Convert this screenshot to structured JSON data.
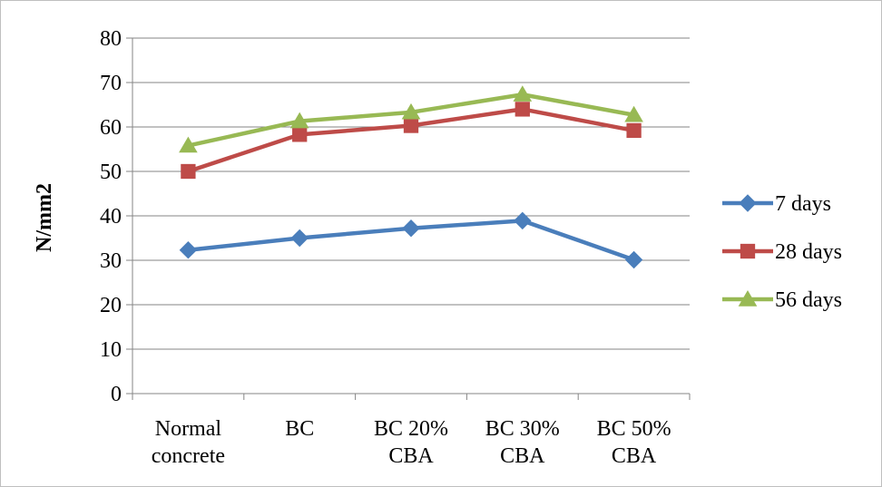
{
  "chart_data": {
    "type": "line",
    "title": "",
    "xlabel": "",
    "ylabel": "N/mm2",
    "ylim": [
      0,
      80
    ],
    "ytick_step": 10,
    "yticks": [
      "0",
      "10",
      "20",
      "30",
      "40",
      "50",
      "60",
      "70",
      "80"
    ],
    "grid": true,
    "legend_position": "right",
    "categories": [
      [
        "Normal",
        "concrete"
      ],
      [
        "BC"
      ],
      [
        "BC 20%",
        "CBA"
      ],
      [
        "BC 30%",
        "CBA"
      ],
      [
        "BC 50%",
        "CBA"
      ]
    ],
    "series": [
      {
        "name": "7 days",
        "color": "#4a7ebb",
        "marker": "diamond",
        "values": [
          32.3,
          35.0,
          37.2,
          38.9,
          30.1
        ]
      },
      {
        "name": "28 days",
        "color": "#be4b48",
        "marker": "square",
        "values": [
          50.0,
          58.3,
          60.3,
          64.0,
          59.2
        ]
      },
      {
        "name": "56 days",
        "color": "#98b954",
        "marker": "triangle",
        "values": [
          55.8,
          61.3,
          63.3,
          67.3,
          62.7
        ]
      }
    ]
  }
}
